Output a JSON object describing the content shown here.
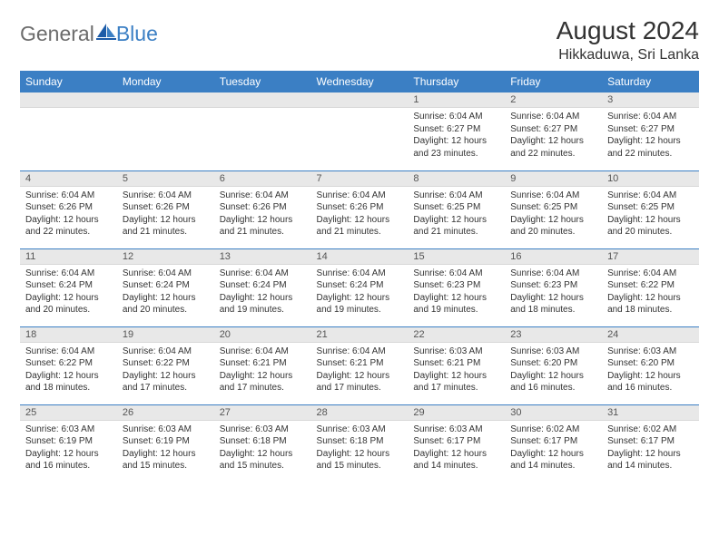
{
  "brand": {
    "part1": "General",
    "part2": "Blue"
  },
  "title": "August 2024",
  "location": "Hikkaduwa, Sri Lanka",
  "colors": {
    "header_bg": "#3b7fc4",
    "header_text": "#ffffff",
    "daynum_bg": "#e8e8e8",
    "week_rule": "#3b7fc4",
    "logo_gray": "#6c6c6c",
    "logo_blue": "#3b7fc4"
  },
  "dayNames": [
    "Sunday",
    "Monday",
    "Tuesday",
    "Wednesday",
    "Thursday",
    "Friday",
    "Saturday"
  ],
  "weeks": [
    [
      {
        "blank": true
      },
      {
        "blank": true
      },
      {
        "blank": true
      },
      {
        "blank": true
      },
      {
        "n": "1",
        "sunrise": "6:04 AM",
        "sunset": "6:27 PM",
        "daylight": "12 hours and 23 minutes."
      },
      {
        "n": "2",
        "sunrise": "6:04 AM",
        "sunset": "6:27 PM",
        "daylight": "12 hours and 22 minutes."
      },
      {
        "n": "3",
        "sunrise": "6:04 AM",
        "sunset": "6:27 PM",
        "daylight": "12 hours and 22 minutes."
      }
    ],
    [
      {
        "n": "4",
        "sunrise": "6:04 AM",
        "sunset": "6:26 PM",
        "daylight": "12 hours and 22 minutes."
      },
      {
        "n": "5",
        "sunrise": "6:04 AM",
        "sunset": "6:26 PM",
        "daylight": "12 hours and 21 minutes."
      },
      {
        "n": "6",
        "sunrise": "6:04 AM",
        "sunset": "6:26 PM",
        "daylight": "12 hours and 21 minutes."
      },
      {
        "n": "7",
        "sunrise": "6:04 AM",
        "sunset": "6:26 PM",
        "daylight": "12 hours and 21 minutes."
      },
      {
        "n": "8",
        "sunrise": "6:04 AM",
        "sunset": "6:25 PM",
        "daylight": "12 hours and 21 minutes."
      },
      {
        "n": "9",
        "sunrise": "6:04 AM",
        "sunset": "6:25 PM",
        "daylight": "12 hours and 20 minutes."
      },
      {
        "n": "10",
        "sunrise": "6:04 AM",
        "sunset": "6:25 PM",
        "daylight": "12 hours and 20 minutes."
      }
    ],
    [
      {
        "n": "11",
        "sunrise": "6:04 AM",
        "sunset": "6:24 PM",
        "daylight": "12 hours and 20 minutes."
      },
      {
        "n": "12",
        "sunrise": "6:04 AM",
        "sunset": "6:24 PM",
        "daylight": "12 hours and 20 minutes."
      },
      {
        "n": "13",
        "sunrise": "6:04 AM",
        "sunset": "6:24 PM",
        "daylight": "12 hours and 19 minutes."
      },
      {
        "n": "14",
        "sunrise": "6:04 AM",
        "sunset": "6:24 PM",
        "daylight": "12 hours and 19 minutes."
      },
      {
        "n": "15",
        "sunrise": "6:04 AM",
        "sunset": "6:23 PM",
        "daylight": "12 hours and 19 minutes."
      },
      {
        "n": "16",
        "sunrise": "6:04 AM",
        "sunset": "6:23 PM",
        "daylight": "12 hours and 18 minutes."
      },
      {
        "n": "17",
        "sunrise": "6:04 AM",
        "sunset": "6:22 PM",
        "daylight": "12 hours and 18 minutes."
      }
    ],
    [
      {
        "n": "18",
        "sunrise": "6:04 AM",
        "sunset": "6:22 PM",
        "daylight": "12 hours and 18 minutes."
      },
      {
        "n": "19",
        "sunrise": "6:04 AM",
        "sunset": "6:22 PM",
        "daylight": "12 hours and 17 minutes."
      },
      {
        "n": "20",
        "sunrise": "6:04 AM",
        "sunset": "6:21 PM",
        "daylight": "12 hours and 17 minutes."
      },
      {
        "n": "21",
        "sunrise": "6:04 AM",
        "sunset": "6:21 PM",
        "daylight": "12 hours and 17 minutes."
      },
      {
        "n": "22",
        "sunrise": "6:03 AM",
        "sunset": "6:21 PM",
        "daylight": "12 hours and 17 minutes."
      },
      {
        "n": "23",
        "sunrise": "6:03 AM",
        "sunset": "6:20 PM",
        "daylight": "12 hours and 16 minutes."
      },
      {
        "n": "24",
        "sunrise": "6:03 AM",
        "sunset": "6:20 PM",
        "daylight": "12 hours and 16 minutes."
      }
    ],
    [
      {
        "n": "25",
        "sunrise": "6:03 AM",
        "sunset": "6:19 PM",
        "daylight": "12 hours and 16 minutes."
      },
      {
        "n": "26",
        "sunrise": "6:03 AM",
        "sunset": "6:19 PM",
        "daylight": "12 hours and 15 minutes."
      },
      {
        "n": "27",
        "sunrise": "6:03 AM",
        "sunset": "6:18 PM",
        "daylight": "12 hours and 15 minutes."
      },
      {
        "n": "28",
        "sunrise": "6:03 AM",
        "sunset": "6:18 PM",
        "daylight": "12 hours and 15 minutes."
      },
      {
        "n": "29",
        "sunrise": "6:03 AM",
        "sunset": "6:17 PM",
        "daylight": "12 hours and 14 minutes."
      },
      {
        "n": "30",
        "sunrise": "6:02 AM",
        "sunset": "6:17 PM",
        "daylight": "12 hours and 14 minutes."
      },
      {
        "n": "31",
        "sunrise": "6:02 AM",
        "sunset": "6:17 PM",
        "daylight": "12 hours and 14 minutes."
      }
    ]
  ],
  "labels": {
    "sunrise": "Sunrise:",
    "sunset": "Sunset:",
    "daylight": "Daylight:"
  }
}
